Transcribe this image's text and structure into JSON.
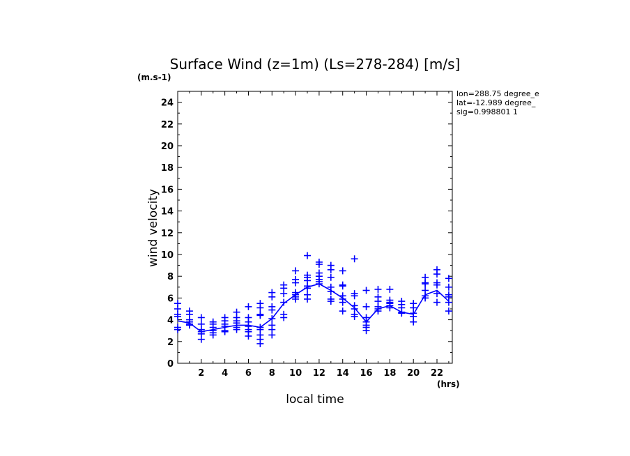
{
  "chart_data": {
    "type": "line",
    "title": "Surface Wind (z=1m) (Ls=278-284) [m/s]",
    "y_units": "(m.s-1)",
    "x_units": "(hrs)",
    "xlabel": "local time",
    "ylabel": "wind velocity",
    "info_lines": [
      "lon=288.75 degree_e",
      "lat=-12.989 degree_",
      "sig=0.998801 1"
    ],
    "xlim": [
      0,
      23.3
    ],
    "ylim": [
      0,
      25
    ],
    "xticks": [
      "2",
      "4",
      "6",
      "8",
      "10",
      "12",
      "14",
      "16",
      "18",
      "20",
      "22"
    ],
    "yticks": [
      "0",
      "2",
      "4",
      "6",
      "8",
      "10",
      "12",
      "14",
      "16",
      "18",
      "20",
      "22",
      "24"
    ],
    "grid": false,
    "color": "#0000ff",
    "mean_line": {
      "name": "mean",
      "x": [
        0,
        1,
        2,
        3,
        4,
        5,
        6,
        7,
        8,
        9,
        10,
        11,
        12,
        13,
        14,
        15,
        16,
        17,
        18,
        19,
        20,
        21,
        22,
        23
      ],
      "y": [
        3.9,
        3.7,
        2.9,
        3.1,
        3.3,
        3.5,
        3.5,
        3.3,
        4.1,
        5.5,
        6.3,
        7.0,
        7.3,
        6.7,
        6.0,
        5.1,
        3.8,
        5.0,
        5.3,
        4.7,
        4.5,
        6.3,
        6.7,
        5.7
      ]
    },
    "scatter": {
      "name": "samples",
      "x": [
        0,
        1,
        2,
        3,
        4,
        5,
        6,
        7,
        8,
        9,
        10,
        11,
        12,
        13,
        14,
        15,
        16,
        17,
        18,
        19,
        20,
        21,
        22,
        23
      ],
      "y": [
        [
          5.5,
          5.0,
          4.5,
          4.3,
          3.3,
          3.1
        ],
        [
          4.8,
          4.5,
          4.0,
          3.8,
          3.6,
          3.5
        ],
        [
          4.2,
          3.6,
          3.1,
          2.9,
          2.7,
          2.2
        ],
        [
          3.8,
          3.6,
          3.3,
          3.0,
          2.8,
          2.6
        ],
        [
          4.2,
          3.9,
          3.6,
          3.4,
          3.0,
          2.9
        ],
        [
          4.7,
          4.2,
          3.9,
          3.7,
          3.3,
          3.1
        ],
        [
          5.2,
          4.2,
          3.8,
          3.4,
          3.1,
          2.9,
          2.5
        ],
        [
          5.5,
          5.1,
          4.5,
          4.4,
          3.3,
          3.1,
          2.6,
          2.2,
          1.8
        ],
        [
          6.5,
          6.1,
          5.2,
          4.9,
          4.1,
          3.5,
          3.1,
          2.6
        ],
        [
          7.2,
          6.9,
          6.4,
          5.6,
          4.5,
          4.2
        ],
        [
          8.5,
          7.7,
          7.4,
          6.5,
          6.3,
          6.1,
          5.9
        ],
        [
          9.9,
          8.1,
          7.9,
          7.6,
          7.1,
          6.9,
          6.3,
          5.9
        ],
        [
          9.3,
          9.1,
          8.3,
          8.0,
          7.7,
          7.5,
          7.3
        ],
        [
          9.0,
          8.6,
          7.9,
          7.0,
          6.6,
          5.9,
          5.7
        ],
        [
          8.5,
          7.2,
          7.1,
          6.2,
          5.9,
          5.6,
          4.8
        ],
        [
          9.6,
          6.4,
          6.2,
          5.3,
          5.0,
          4.5,
          4.3
        ],
        [
          6.7,
          5.2,
          4.2,
          3.8,
          3.5,
          3.3,
          3.0
        ],
        [
          6.8,
          6.1,
          5.7,
          5.2,
          5.0,
          4.8
        ],
        [
          6.8,
          5.8,
          5.6,
          5.5,
          5.3,
          5.1
        ],
        [
          5.7,
          5.4,
          5.1,
          4.7,
          4.6
        ],
        [
          5.5,
          5.1,
          4.6,
          4.3,
          3.8
        ],
        [
          7.9,
          7.4,
          7.3,
          6.7,
          6.2,
          6.0
        ],
        [
          8.6,
          8.2,
          7.4,
          7.2,
          6.4,
          5.6
        ],
        [
          7.8,
          7.0,
          6.3,
          6.1,
          5.6,
          4.8
        ]
      ]
    }
  }
}
